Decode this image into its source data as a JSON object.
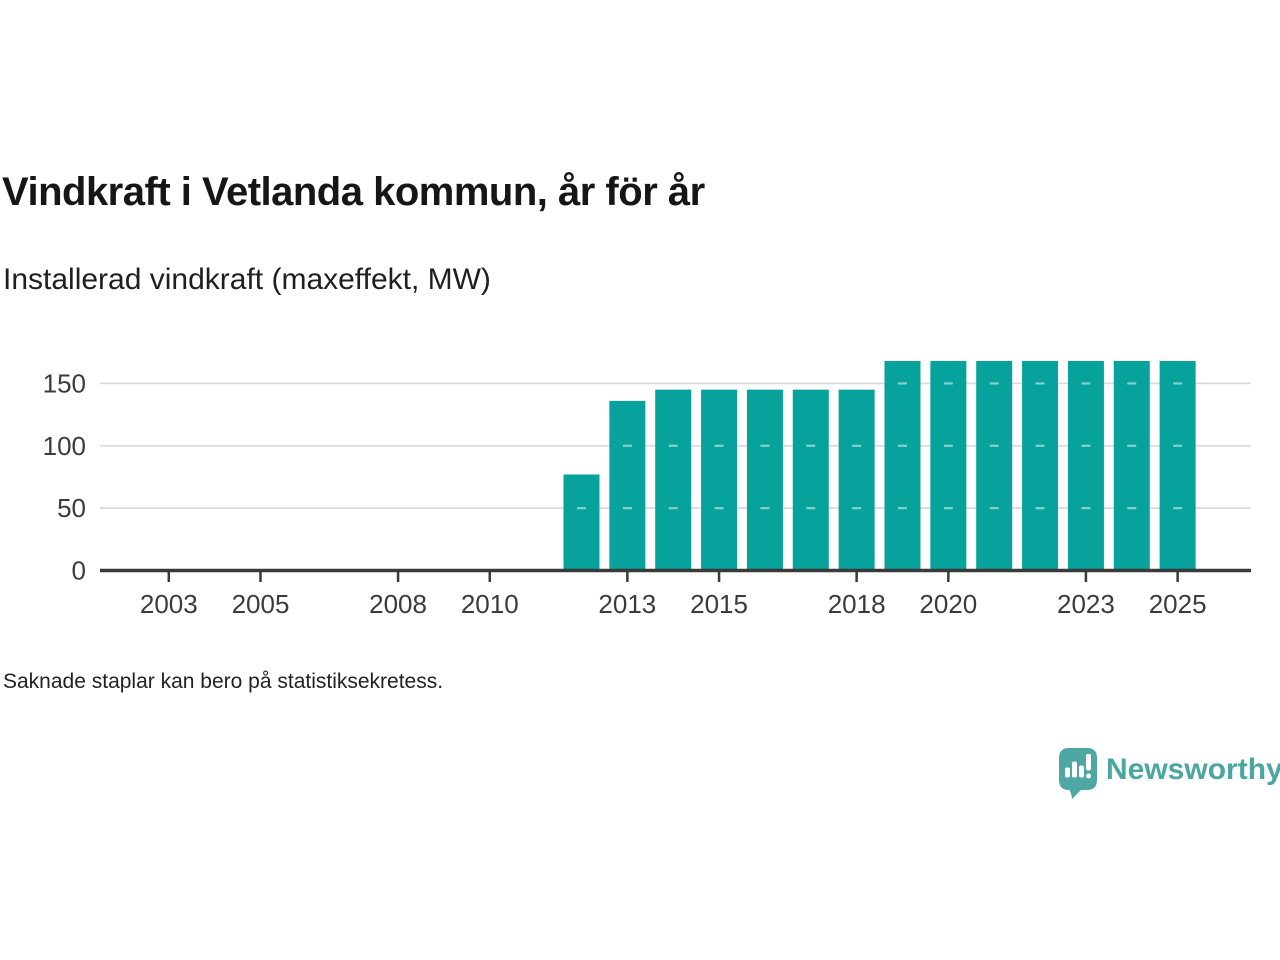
{
  "header": {
    "title": "Vindkraft i Vetlanda kommun, år för år",
    "subtitle": "Installerad vindkraft (maxeffekt, MW)"
  },
  "footer": {
    "note": "Saknade staplar kan bero på statistiksekretess.",
    "brand": {
      "name": "Newsworthy",
      "logo_icon": "speech-bubble-with-bar-chart-and-exclamation"
    }
  },
  "chart_data": {
    "type": "bar",
    "title": "Vindkraft i Vetlanda kommun, år för år",
    "subtitle": "Installerad vindkraft (maxeffekt, MW)",
    "ylabel": "Installerad vindkraft (maxeffekt, MW)",
    "xlabel": "",
    "unit": "MW",
    "x": [
      2012,
      2013,
      2014,
      2015,
      2016,
      2017,
      2018,
      2019,
      2020,
      2021,
      2022,
      2023,
      2024,
      2025
    ],
    "values": [
      77,
      136,
      145,
      145,
      145,
      145,
      145,
      168,
      168,
      168,
      168,
      168,
      168,
      168
    ],
    "missing_years_note": "no bars shown for 2002-2011",
    "xticks": [
      2003,
      2005,
      2008,
      2010,
      2013,
      2015,
      2018,
      2020,
      2023,
      2025
    ],
    "yticks": [
      0,
      50,
      100,
      150
    ],
    "xlim": [
      2001.5,
      2026.6
    ],
    "ylim": [
      0,
      172
    ],
    "grid": "horizontal",
    "legend": "none",
    "colors": {
      "bar": "#06a29b",
      "axis": "#3a3a3a",
      "grid": "#d9d9d9",
      "tick_text": "#3b3b3b",
      "bar_grid_dash": "#ffffff",
      "brand": "#4ba6a2",
      "logo_fill": "#4fa7a3"
    }
  }
}
